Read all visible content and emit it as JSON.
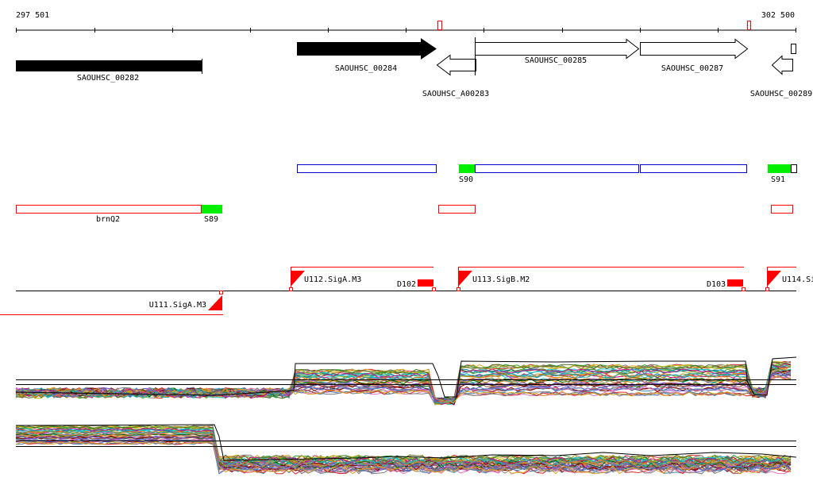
{
  "coordinate_range": {
    "start": "297 501",
    "end": "302 500"
  },
  "colors": {
    "gene_fill": "#000000",
    "feature_red": "#ff0000",
    "feature_blue": "#0000cc",
    "feature_green": "#00ee00",
    "axis": "#000000"
  },
  "genes": [
    {
      "label": "SAOUHSC_00282",
      "strand": "plus",
      "style": "filled"
    },
    {
      "label": "SAOUHSC_00284",
      "strand": "plus",
      "style": "filled"
    },
    {
      "label": "SAOUHSC_A00283",
      "strand": "minus",
      "style": "open"
    },
    {
      "label": "SAOUHSC_00285",
      "strand": "plus",
      "style": "open"
    },
    {
      "label": "SAOUHSC_00287",
      "strand": "plus",
      "style": "open"
    },
    {
      "label": "SAOUHSC_00289",
      "strand": "minus",
      "style": "open"
    }
  ],
  "segments": [
    {
      "label": "S90"
    },
    {
      "label": "S91"
    },
    {
      "label": "brnQ2"
    },
    {
      "label": "S89"
    }
  ],
  "transcripts": [
    {
      "label": "U112.SigA.M3",
      "strand": "plus"
    },
    {
      "label": "U113.SigB.M2",
      "strand": "plus"
    },
    {
      "label": "U114.Si",
      "strand": "plus"
    },
    {
      "label": "U111.SigA.M3",
      "strand": "minus"
    },
    {
      "label": "D102"
    },
    {
      "label": "D103"
    }
  ]
}
